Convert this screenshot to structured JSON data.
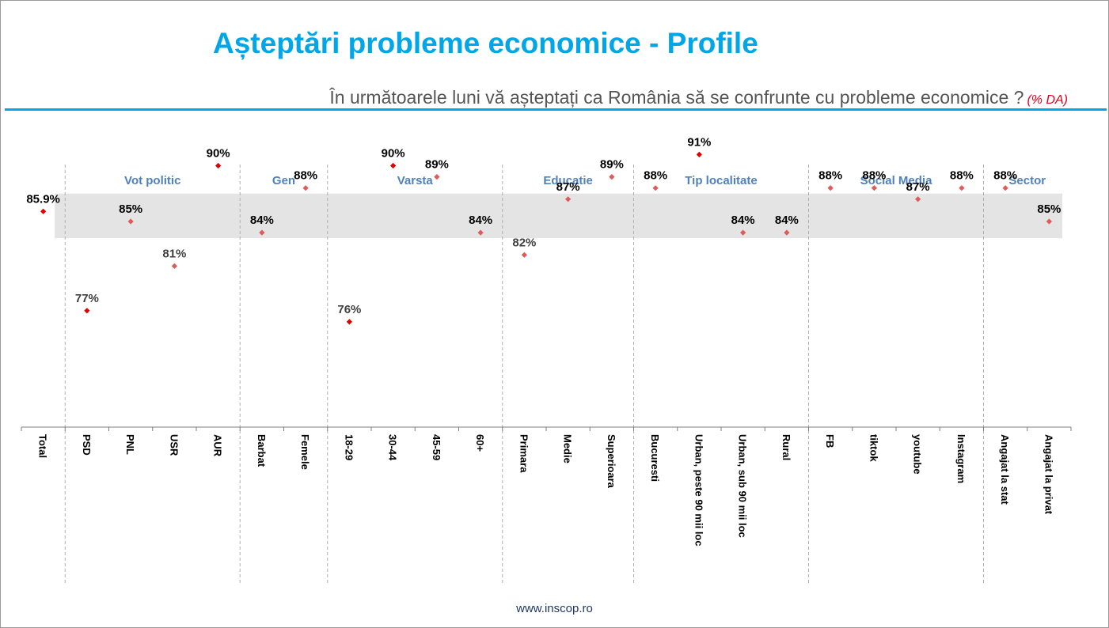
{
  "header": {
    "title": "Așteptări probleme economice - Profile",
    "subtitle": "În următoarele luni vă așteptați ca România să se confrunte cu probleme economice ?",
    "subtitle_note": "(% DA)"
  },
  "footer": {
    "url": "www.inscop.ro"
  },
  "chart_data": {
    "type": "scatter",
    "title": "Așteptări probleme economice - Profile",
    "categories": [
      "Total",
      "PSD",
      "PNL",
      "USR",
      "AUR",
      "Barbat",
      "Femele",
      "18-29",
      "30-44",
      "45-59",
      "60+",
      "Primara",
      "Medie",
      "Superioara",
      "Bucuresti",
      "Urban, peste 90 mii loc",
      "Urban, sub 90 mii loc",
      "Rural",
      "FB",
      "tiktok",
      "youtube",
      "Instagram",
      "Angajat la stat",
      "Angajat la privat"
    ],
    "values": [
      85.9,
      77,
      85,
      81,
      90,
      84,
      88,
      76,
      90,
      89,
      84,
      82,
      87,
      89,
      88,
      91,
      84,
      84,
      88,
      88,
      87,
      88,
      88,
      85
    ],
    "data_labels": [
      "85.9%",
      "77%",
      "85%",
      "81%",
      "90%",
      "84%",
      "88%",
      "76%",
      "90%",
      "89%",
      "84%",
      "82%",
      "87%",
      "89%",
      "88%",
      "91%",
      "84%",
      "84%",
      "88%",
      "88%",
      "87%",
      "88%",
      "88%",
      "85%"
    ],
    "groups": [
      {
        "name": "Vot politic",
        "categories": [
          "PSD",
          "PNL",
          "USR",
          "AUR"
        ]
      },
      {
        "name": "Gen",
        "categories": [
          "Barbat",
          "Femele"
        ]
      },
      {
        "name": "Varsta",
        "categories": [
          "18-29",
          "30-44",
          "45-59",
          "60+"
        ]
      },
      {
        "name": "Educatie",
        "categories": [
          "Primara",
          "Medie",
          "Superioara"
        ]
      },
      {
        "name": "Tip localitate",
        "categories": [
          "Bucuresti",
          "Urban, peste 90 mii loc",
          "Urban, sub 90 mii loc",
          "Rural"
        ]
      },
      {
        "name": "Social Media",
        "categories": [
          "FB",
          "tiktok",
          "youtube",
          "Instagram"
        ]
      },
      {
        "name": "Sector",
        "categories": [
          "Angajat la stat",
          "Angajat la privat"
        ]
      }
    ],
    "reference_band": [
      83.5,
      87.5
    ],
    "xlabel": "",
    "ylabel": "",
    "grid": false,
    "legend": "none",
    "colors": {
      "marker_strong": "#e00000",
      "marker_light": "#e05a5a",
      "band": "#e4e4e4",
      "group_label": "#4f81bd",
      "label_dark": "#000000",
      "label_grey": "#404040"
    }
  }
}
